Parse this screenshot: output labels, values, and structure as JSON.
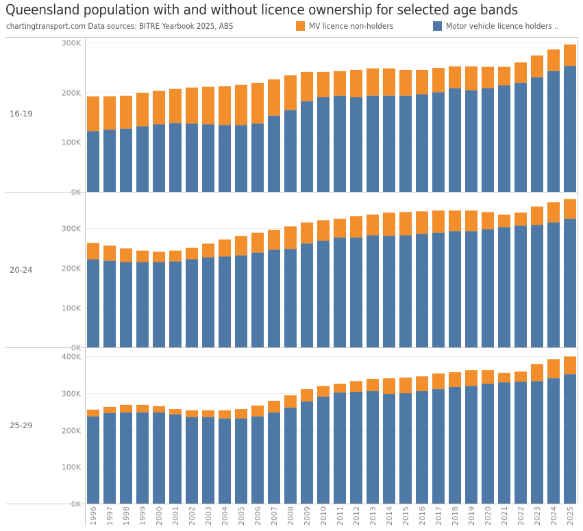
{
  "title": "Queensland population with and without licence ownership for selected age bands",
  "subtitle": "chartingtransport.com  Data sources: BITRE Yearbook 2025, ABS",
  "legend": [
    {
      "label": "MV licence non-holders",
      "color": "#F28E2B"
    },
    {
      "label": "Motor vehicle licence holders ..",
      "color": "#4E79A7"
    }
  ],
  "chart_data": {
    "type": "bar",
    "stacked": true,
    "title": "Queensland population with and without licence ownership for selected age bands",
    "xlabel": "",
    "ylabel": "",
    "grid": true,
    "legend_position": "top-right",
    "categories": [
      "1996",
      "1997",
      "1998",
      "1999",
      "2000",
      "2001",
      "2002",
      "2003",
      "2004",
      "2005",
      "2006",
      "2007",
      "2008",
      "2009",
      "2010",
      "2011",
      "2012",
      "2013",
      "2014",
      "2015",
      "2016",
      "2017",
      "2018",
      "2019",
      "2020",
      "2021",
      "2022",
      "2023",
      "2024",
      "2025"
    ],
    "series_names": [
      "Motor vehicle licence holders ..",
      "MV licence non-holders"
    ],
    "colors": {
      "holders": "#4E79A7",
      "non_holders": "#F28E2B"
    },
    "panels": [
      {
        "label": "16-19",
        "ylim": [
          0,
          300000
        ],
        "yticks": [
          0,
          100000,
          200000,
          300000
        ],
        "ytick_labels": [
          "0K",
          "100K",
          "200K",
          "300K"
        ],
        "holders": [
          122000,
          124700,
          127000,
          131500,
          135600,
          138000,
          137000,
          135600,
          134000,
          134000,
          137000,
          153000,
          164000,
          182000,
          190000,
          193000,
          190000,
          193000,
          193000,
          193000,
          196000,
          200000,
          208000,
          204000,
          208000,
          214000,
          219000,
          230000,
          242500,
          253000
        ],
        "totals": [
          191800,
          192000,
          193000,
          198600,
          202700,
          206800,
          209600,
          211000,
          212000,
          215000,
          219000,
          226000,
          234000,
          241000,
          241000,
          242500,
          245000,
          248000,
          248000,
          245000,
          245000,
          249000,
          252000,
          252000,
          251000,
          251000,
          260000,
          274000,
          286000,
          296000
        ]
      },
      {
        "label": "20-24",
        "ylim": [
          0,
          380000
        ],
        "yticks": [
          0,
          100000,
          200000,
          300000
        ],
        "ytick_labels": [
          "0K",
          "100K",
          "200K",
          "300K"
        ],
        "holders": [
          222000,
          218000,
          215000,
          215000,
          215000,
          216600,
          222000,
          227000,
          229000,
          232000,
          239000,
          246000,
          248000,
          262000,
          268600,
          277000,
          277000,
          282500,
          281000,
          282500,
          286000,
          289000,
          293000,
          293000,
          298000,
          303000,
          306700,
          308500,
          315000,
          324000
        ],
        "totals": [
          263000,
          256500,
          249600,
          244000,
          241000,
          244000,
          251000,
          261700,
          272000,
          281000,
          289000,
          296000,
          305000,
          315000,
          320600,
          324000,
          331000,
          334500,
          339700,
          341000,
          343000,
          345000,
          345000,
          345000,
          341000,
          334500,
          339700,
          355000,
          365700,
          374000
        ]
      },
      {
        "label": "25-29",
        "ylim": [
          0,
          410000
        ],
        "yticks": [
          0,
          100000,
          200000,
          300000,
          400000
        ],
        "ytick_labels": [
          "0K",
          "100K",
          "200K",
          "300K",
          "400K"
        ],
        "holders": [
          237000,
          246000,
          248000,
          248000,
          248000,
          242600,
          235000,
          235000,
          231500,
          231500,
          237000,
          248000,
          261000,
          277800,
          290700,
          302000,
          303700,
          305600,
          298000,
          300000,
          305600,
          311000,
          316700,
          320000,
          326000,
          329600,
          331500,
          333000,
          340700,
          351800
        ],
        "totals": [
          255600,
          263000,
          268500,
          268500,
          265000,
          257000,
          253700,
          253700,
          253700,
          257000,
          266700,
          279600,
          294400,
          311000,
          320000,
          326000,
          333000,
          339000,
          340700,
          342600,
          346000,
          353700,
          357400,
          363000,
          363000,
          355600,
          359000,
          379600,
          392600,
          400000
        ]
      }
    ]
  }
}
